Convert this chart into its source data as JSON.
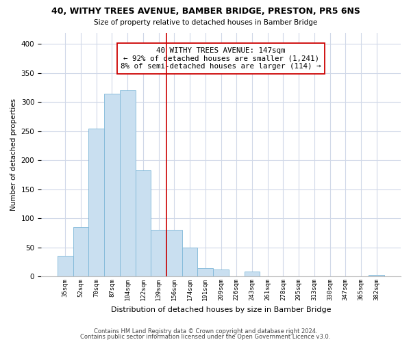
{
  "title": "40, WITHY TREES AVENUE, BAMBER BRIDGE, PRESTON, PR5 6NS",
  "subtitle": "Size of property relative to detached houses in Bamber Bridge",
  "xlabel": "Distribution of detached houses by size in Bamber Bridge",
  "ylabel": "Number of detached properties",
  "bar_labels": [
    "35sqm",
    "52sqm",
    "70sqm",
    "87sqm",
    "104sqm",
    "122sqm",
    "139sqm",
    "156sqm",
    "174sqm",
    "191sqm",
    "209sqm",
    "226sqm",
    "243sqm",
    "261sqm",
    "278sqm",
    "295sqm",
    "313sqm",
    "330sqm",
    "347sqm",
    "365sqm",
    "382sqm"
  ],
  "bar_values": [
    35,
    85,
    255,
    315,
    320,
    183,
    80,
    80,
    50,
    14,
    12,
    0,
    8,
    0,
    0,
    0,
    0,
    0,
    0,
    0,
    2
  ],
  "bar_color": "#c9dff0",
  "bar_edge_color": "#7fb8d8",
  "vline_index": 7,
  "vline_color": "#cc0000",
  "annotation_title": "40 WITHY TREES AVENUE: 147sqm",
  "annotation_line1": "← 92% of detached houses are smaller (1,241)",
  "annotation_line2": "8% of semi-detached houses are larger (114) →",
  "annotation_box_color": "#ffffff",
  "annotation_box_edge": "#cc0000",
  "ylim": [
    0,
    420
  ],
  "background_color": "#ffffff",
  "grid_color": "#d0d8e8",
  "footer1": "Contains HM Land Registry data © Crown copyright and database right 2024.",
  "footer2": "Contains public sector information licensed under the Open Government Licence v3.0."
}
